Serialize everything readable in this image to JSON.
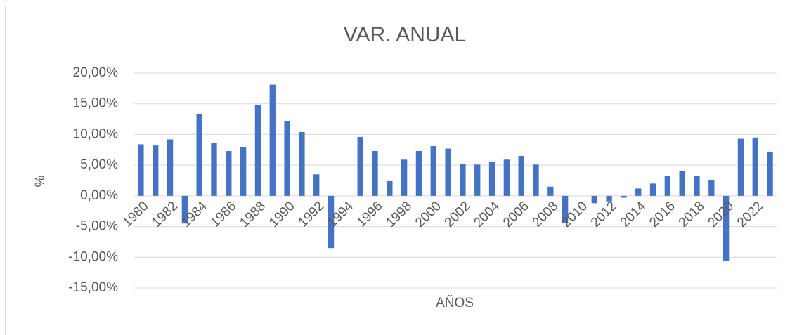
{
  "chart_data": {
    "type": "bar",
    "title": "VAR. ANUAL",
    "x_label": "AÑOS",
    "y_label": "%",
    "categories": [
      "1980",
      null,
      "1982",
      null,
      "1984",
      null,
      "1986",
      null,
      "1988",
      null,
      "1990",
      null,
      "1992",
      null,
      "1994",
      null,
      "1996",
      null,
      "1998",
      null,
      "2000",
      null,
      "2002",
      null,
      "2004",
      null,
      "2006",
      null,
      "2008",
      null,
      "2010",
      null,
      "2012",
      null,
      "2014",
      null,
      "2016",
      null,
      "2018",
      null,
      "2020",
      null,
      "2022",
      null
    ],
    "values": [
      8.4,
      8.2,
      9.2,
      -4.5,
      13.3,
      8.6,
      7.3,
      7.9,
      14.8,
      18.1,
      12.2,
      10.4,
      3.5,
      -8.5,
      0,
      9.6,
      7.3,
      2.4,
      5.9,
      7.3,
      8.1,
      7.7,
      5.2,
      5.1,
      5.5,
      5.9,
      6.5,
      5.1,
      1.5,
      -4.4,
      0,
      -1.2,
      -0.9,
      -0.3,
      1.2,
      2.0,
      3.3,
      4.1,
      3.2,
      2.6,
      -10.6,
      9.3,
      9.5,
      7.2
    ],
    "color": "#4472c4",
    "ylim": [
      -15,
      20
    ],
    "yticks": [
      {
        "value": -15,
        "label": "-15,00%"
      },
      {
        "value": -10,
        "label": "-10,00%"
      },
      {
        "value": -5,
        "label": "-5,00%"
      },
      {
        "value": 0,
        "label": "0,00%"
      },
      {
        "value": 5,
        "label": "5,00%"
      },
      {
        "value": 10,
        "label": "10,00%"
      },
      {
        "value": 15,
        "label": "15,00%"
      },
      {
        "value": 20,
        "label": "20,00%"
      }
    ],
    "grid": true
  }
}
